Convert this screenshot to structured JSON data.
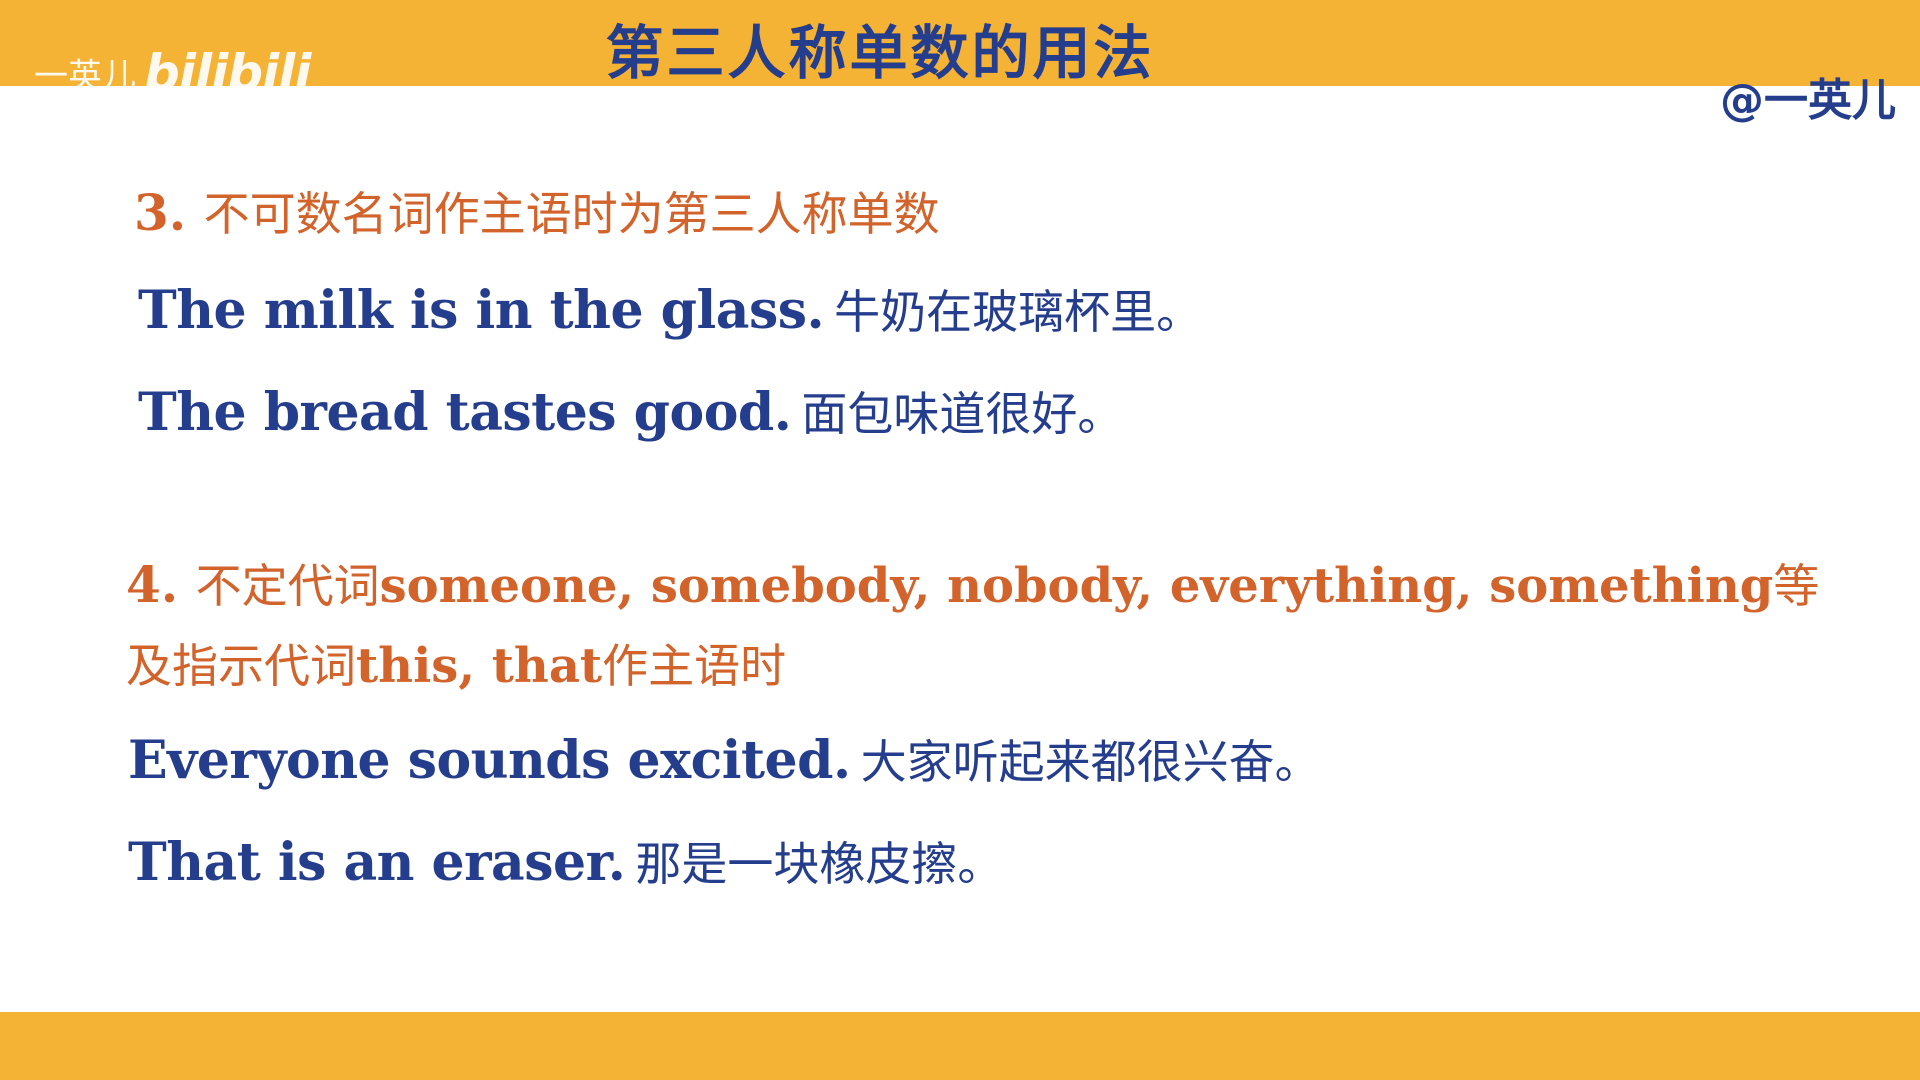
{
  "header": {
    "title": "第三人称单数的用法",
    "watermark_name": "一英儿",
    "watermark_logo": "bilibili",
    "handle": "@一英儿"
  },
  "section3": {
    "number": "3. ",
    "heading": "不可数名词作主语时为第三人称单数",
    "examples": [
      {
        "en": "The milk is in the glass.",
        "zh": "牛奶在玻璃杯里。"
      },
      {
        "en": "The bread tastes good.",
        "zh": "面包味道很好。"
      }
    ]
  },
  "section4": {
    "number": "4. ",
    "heading_prefix": "不定代词",
    "heading_words": "someone, somebody, nobody, everything, something",
    "heading_suffix": "等",
    "heading_line2_prefix": "及指示代词",
    "heading_line2_words": "this, that",
    "heading_line2_suffix": "作主语时",
    "examples": [
      {
        "en": "Everyone sounds excited.",
        "zh": "大家听起来都很兴奋。"
      },
      {
        "en": "That is an eraser.",
        "zh": "那是一块橡皮擦。"
      }
    ]
  },
  "colors": {
    "banner": "#f5b335",
    "title_text": "#243d8c",
    "heading_text": "#d2632b",
    "example_text": "#243d8c"
  }
}
